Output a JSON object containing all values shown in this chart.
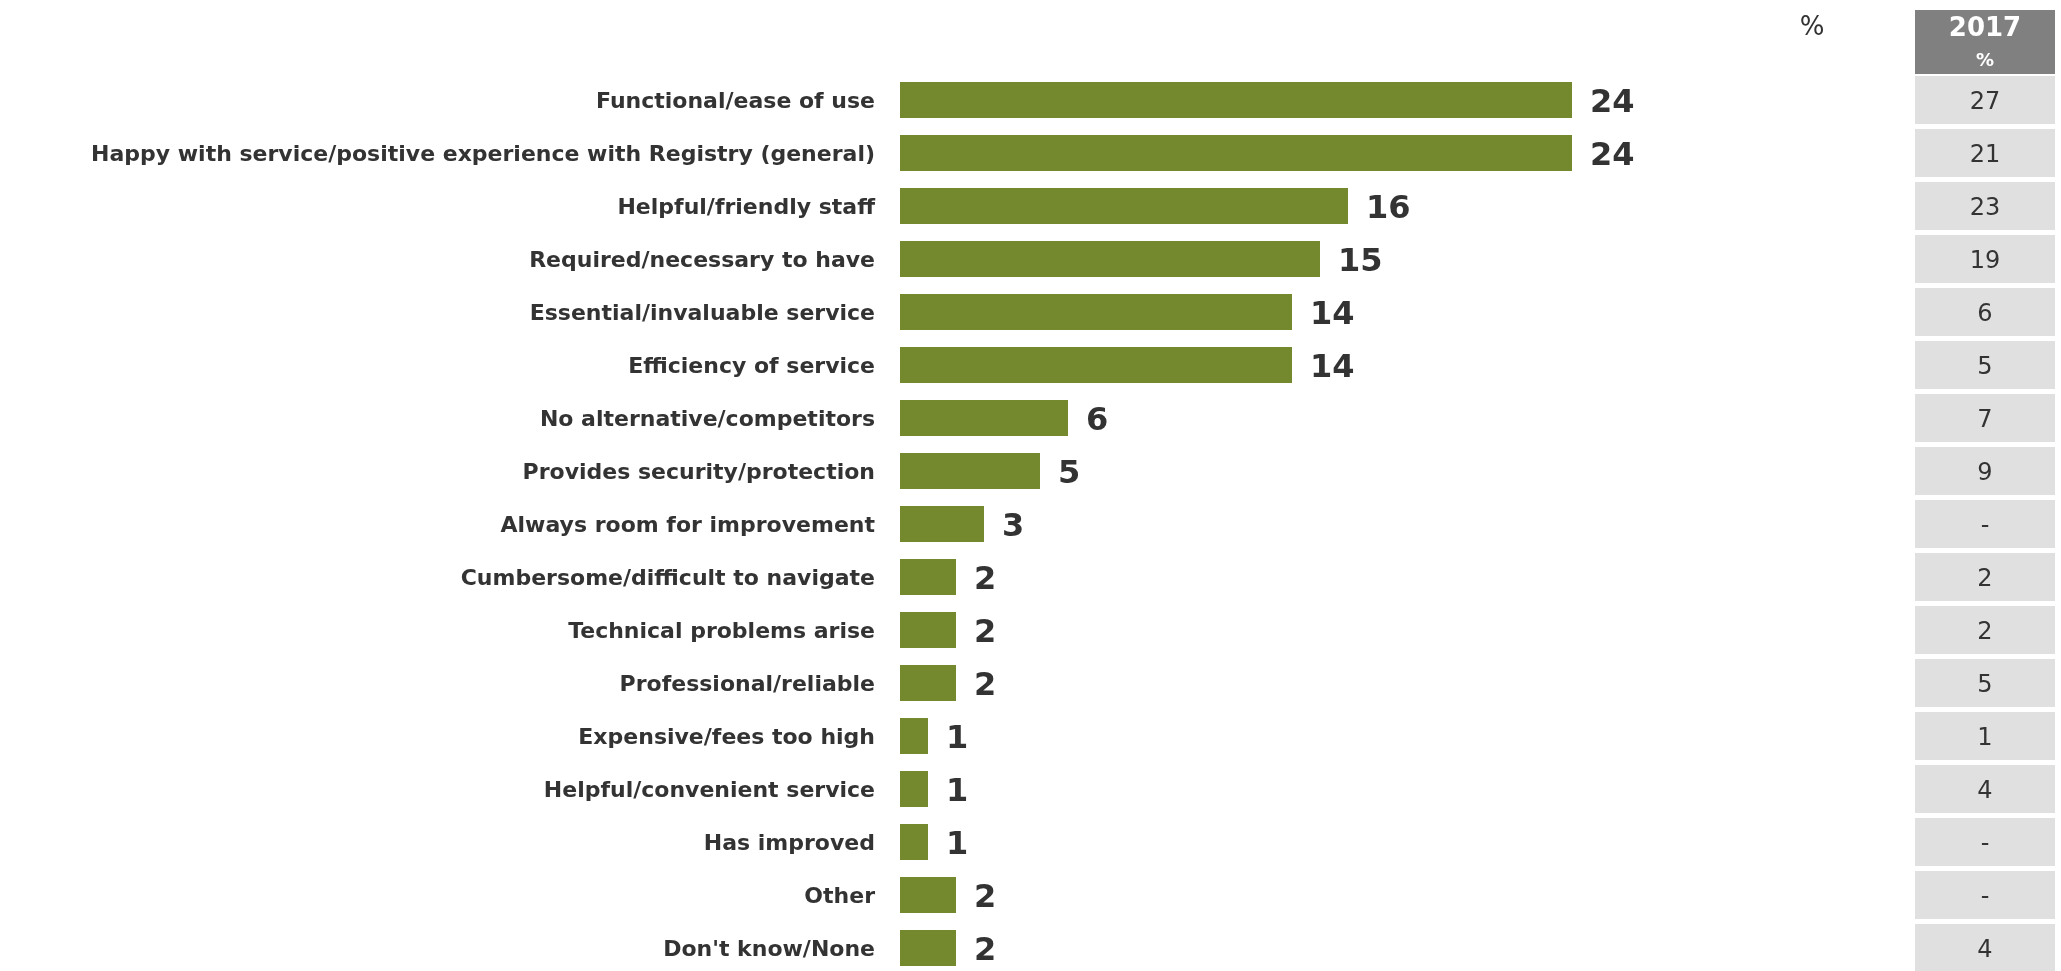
{
  "chart_data": {
    "type": "bar",
    "orientation": "horizontal",
    "data_labels": true,
    "categories": [
      "Functional/ease of use",
      "Happy with service/positive experience with Registry (general)",
      "Helpful/friendly staff",
      "Required/necessary to have",
      "Essential/invaluable service",
      "Efficiency of service",
      "No alternative/competitors",
      "Provides security/protection",
      "Always room for improvement",
      "Cumbersome/difficult to navigate",
      "Technical problems arise",
      "Professional/reliable",
      "Expensive/fees too high",
      "Helpful/convenient service",
      "Has improved",
      "Other",
      "Don't know/None"
    ],
    "series": [
      {
        "color": "#74892d",
        "values": [
          24,
          24,
          16,
          15,
          14,
          14,
          6,
          5,
          3,
          2,
          2,
          2,
          1,
          1,
          1,
          2,
          2
        ]
      }
    ],
    "annotations": [
      "%",
      "2017",
      "%",
      "27",
      "21",
      "23",
      "19",
      "6",
      "5",
      "7",
      "9",
      "-",
      "2",
      "2",
      "5",
      "1",
      "4",
      "-",
      "-",
      "4"
    ]
  }
}
